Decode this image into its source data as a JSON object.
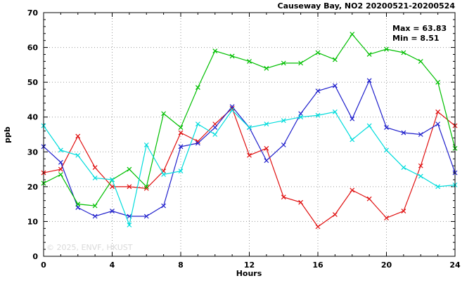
{
  "watermark": "© 2025, ENVF, HKUST",
  "annotations": {
    "max": "Max = 63.83",
    "min": "Min = 8.51"
  },
  "chart_data": {
    "type": "line",
    "title": "Causeway Bay, NO2 20200521-20200524",
    "xlabel": "Hours",
    "ylabel": "ppb",
    "xlim": [
      0,
      24
    ],
    "ylim": [
      0,
      70
    ],
    "xticks": [
      0,
      4,
      8,
      12,
      16,
      20,
      24
    ],
    "yticks": [
      0,
      10,
      20,
      30,
      40,
      50,
      60,
      70
    ],
    "grid": true,
    "legend": "none",
    "marker": "x-cross",
    "x": [
      0,
      1,
      2,
      3,
      4,
      5,
      6,
      7,
      8,
      9,
      10,
      11,
      12,
      13,
      14,
      15,
      16,
      17,
      18,
      19,
      20,
      21,
      22,
      23,
      24
    ],
    "series": [
      {
        "name": "red",
        "color": "#e01010",
        "values": [
          24,
          25,
          34.5,
          25.5,
          20,
          20,
          19.5,
          24.5,
          35.5,
          33,
          38,
          42.5,
          29,
          31,
          17,
          15.5,
          8.5,
          12,
          19,
          16.5,
          11,
          13,
          26,
          41.5,
          37.5
        ]
      },
      {
        "name": "blue",
        "color": "#2020cc",
        "values": [
          31.5,
          27,
          14,
          11.5,
          13,
          11.5,
          11.5,
          14.5,
          31.5,
          32.5,
          37,
          43,
          37,
          27.5,
          32,
          41,
          47.5,
          49,
          39.5,
          50.5,
          37,
          35.5,
          35,
          38,
          24
        ]
      },
      {
        "name": "green",
        "color": "#00bf00",
        "values": [
          21,
          23.5,
          15,
          14.5,
          22,
          25,
          20,
          41,
          37,
          48.5,
          59,
          57.5,
          56,
          54,
          55.5,
          55.5,
          58.5,
          56.5,
          63.8,
          58,
          59.5,
          58.5,
          56,
          50,
          31
        ]
      },
      {
        "name": "cyan",
        "color": "#00dcdc",
        "values": [
          37.5,
          30.5,
          29,
          22.5,
          22,
          9,
          32,
          23.5,
          24.5,
          38,
          35,
          42,
          37,
          38,
          39,
          40,
          40.5,
          41.5,
          33.5,
          37.5,
          30.5,
          25.5,
          23,
          20,
          20.5
        ]
      }
    ],
    "stats": {
      "max": 63.83,
      "min": 8.51
    }
  }
}
